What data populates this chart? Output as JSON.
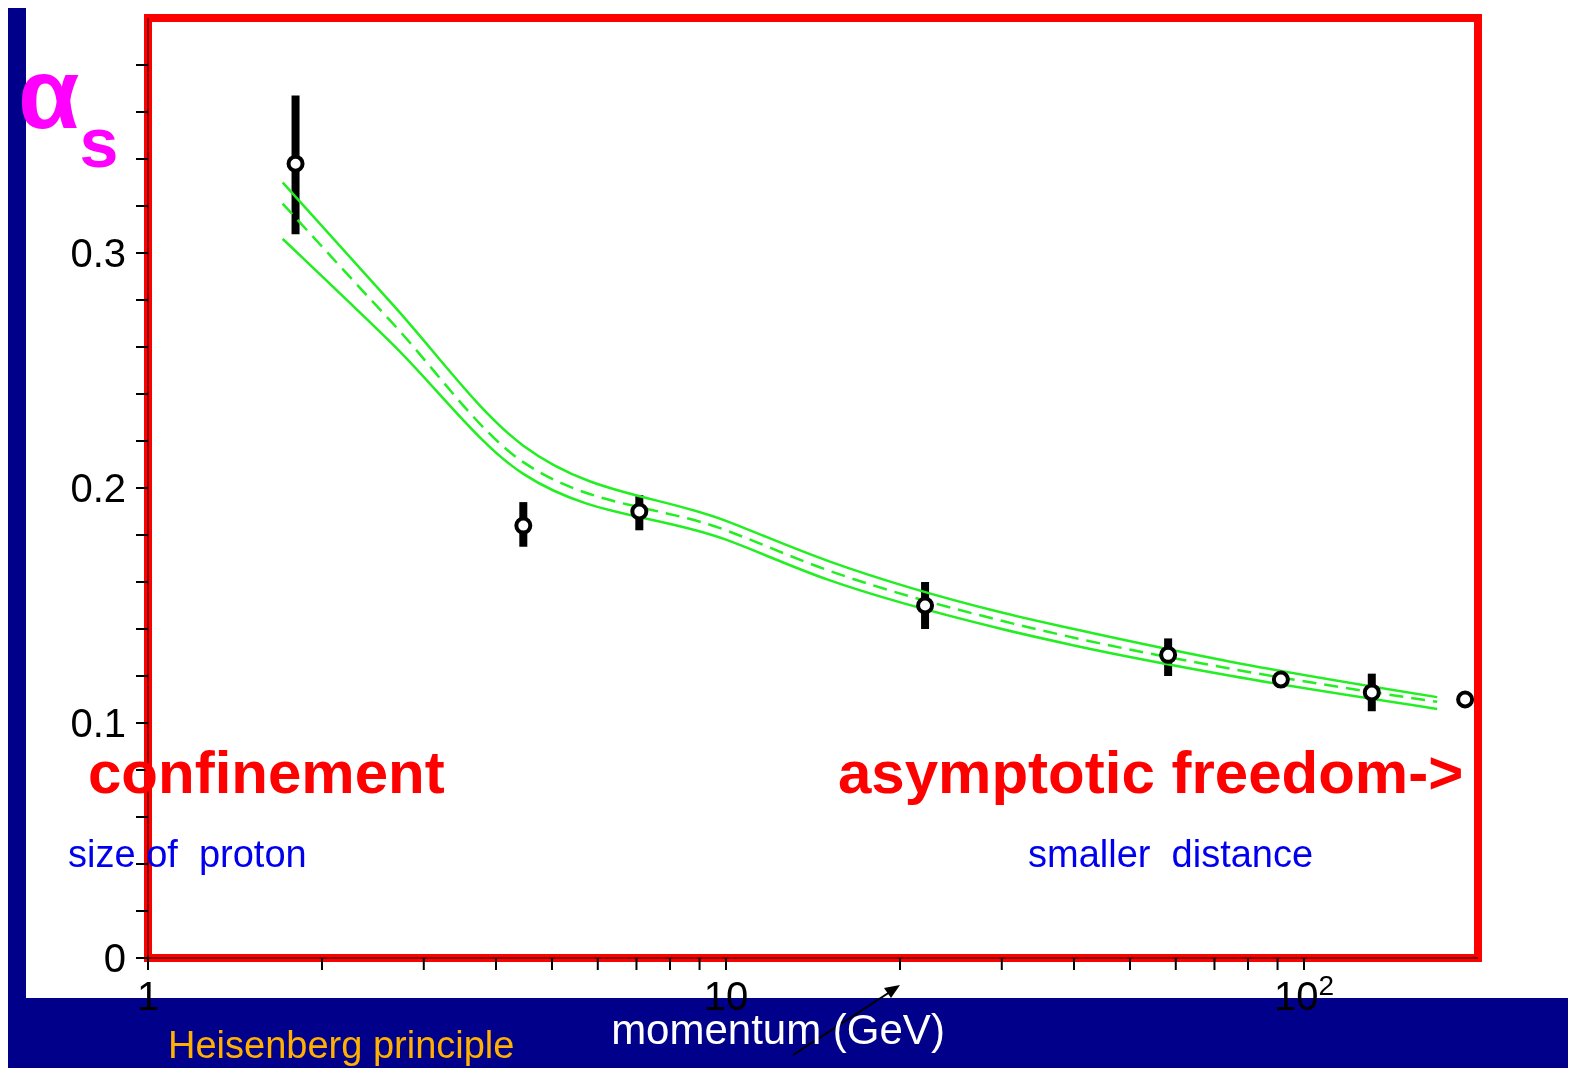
{
  "chart_data": {
    "type": "scatter",
    "ylabel": "α$_{s}$",
    "xlabel": "momentum (GeV)",
    "log": "x",
    "xlim": [
      1,
      200
    ],
    "xticks": [
      1,
      {
        "value": 2,
        "label": null
      },
      {
        "value": 3,
        "label": null
      },
      {
        "value": 4,
        "label": null
      },
      {
        "value": 5,
        "label": null
      },
      {
        "value": 6,
        "label": null
      },
      {
        "value": 7,
        "label": null
      },
      {
        "value": 8,
        "label": null
      },
      {
        "value": 9,
        "label": null
      },
      10,
      {
        "value": 20,
        "label": null
      },
      {
        "value": 30,
        "label": null
      },
      {
        "value": 40,
        "label": null
      },
      {
        "value": 50,
        "label": null
      },
      {
        "value": 60,
        "label": null
      },
      {
        "value": 70,
        "label": null
      },
      {
        "value": 80,
        "label": null
      },
      {
        "value": 90,
        "label": null
      },
      {
        "value": 100,
        "label": "10$^{2}$"
      }
    ],
    "ylim": [
      0,
      0.4
    ],
    "yticks": [
      0,
      {
        "value": 0.02,
        "label": null
      },
      {
        "value": 0.04,
        "label": null
      },
      {
        "value": 0.06,
        "label": null
      },
      {
        "value": 0.08,
        "label": null
      },
      0.1,
      {
        "value": 0.12,
        "label": null
      },
      {
        "value": 0.14,
        "label": null
      },
      {
        "value": 0.16,
        "label": null
      },
      {
        "value": 0.18,
        "label": null
      },
      0.2,
      {
        "value": 0.22,
        "label": null
      },
      {
        "value": 0.24,
        "label": null
      },
      {
        "value": 0.26,
        "label": null
      },
      {
        "value": 0.28,
        "label": null
      },
      0.3,
      {
        "value": 0.32,
        "label": null
      },
      {
        "value": 0.34,
        "label": null
      },
      {
        "value": 0.36,
        "label": null
      },
      {
        "value": 0.38,
        "label": null
      }
    ],
    "annotations": [
      "confinement",
      "asymptotic freedom->",
      "size of  proton",
      "smaller  distance",
      "Heisenberg principle"
    ],
    "series": [
      {
        "marker": "circle",
        "color": "#000000",
        "x": [
          1.8,
          4.46,
          7.08,
          22.1,
          58.2,
          91.2,
          131,
          190
        ],
        "values": [
          0.338,
          0.184,
          0.19,
          0.15,
          0.129,
          0.1185,
          0.113,
          0.11
        ],
        "errors": [
          [
            0.308,
            0.367
          ],
          [
            0.175,
            0.194
          ],
          [
            0.182,
            0.197
          ],
          [
            0.14,
            0.16
          ],
          [
            0.12,
            0.136
          ],
          null,
          [
            0.105,
            0.121
          ],
          null
        ]
      },
      {
        "type": "line",
        "color": "#22ee22",
        "line_style": "solid",
        "x": [
          1.71,
          2.63,
          4.46,
          10,
          15,
          30,
          40,
          75,
          170
        ],
        "values": [
          0.33,
          0.279,
          0.218,
          0.186,
          0.169,
          0.147,
          0.14,
          0.126,
          0.111
        ]
      },
      {
        "type": "line",
        "color": "#22ee22",
        "line_style": "dashed",
        "x": [
          1.71,
          2.63,
          4.46,
          10,
          15,
          30,
          40,
          75,
          170
        ],
        "values": [
          0.321,
          0.271,
          0.211,
          0.182,
          0.165,
          0.1435,
          0.1363,
          0.123,
          0.109
        ]
      },
      {
        "type": "line",
        "color": "#22ee22",
        "line_style": "solid",
        "x": [
          1.71,
          2.63,
          4.46,
          10,
          15,
          30,
          40,
          75,
          170
        ],
        "values": [
          0.306,
          0.262,
          0.206,
          0.178,
          0.161,
          0.14,
          0.133,
          0.12,
          0.106
        ]
      }
    ]
  }
}
